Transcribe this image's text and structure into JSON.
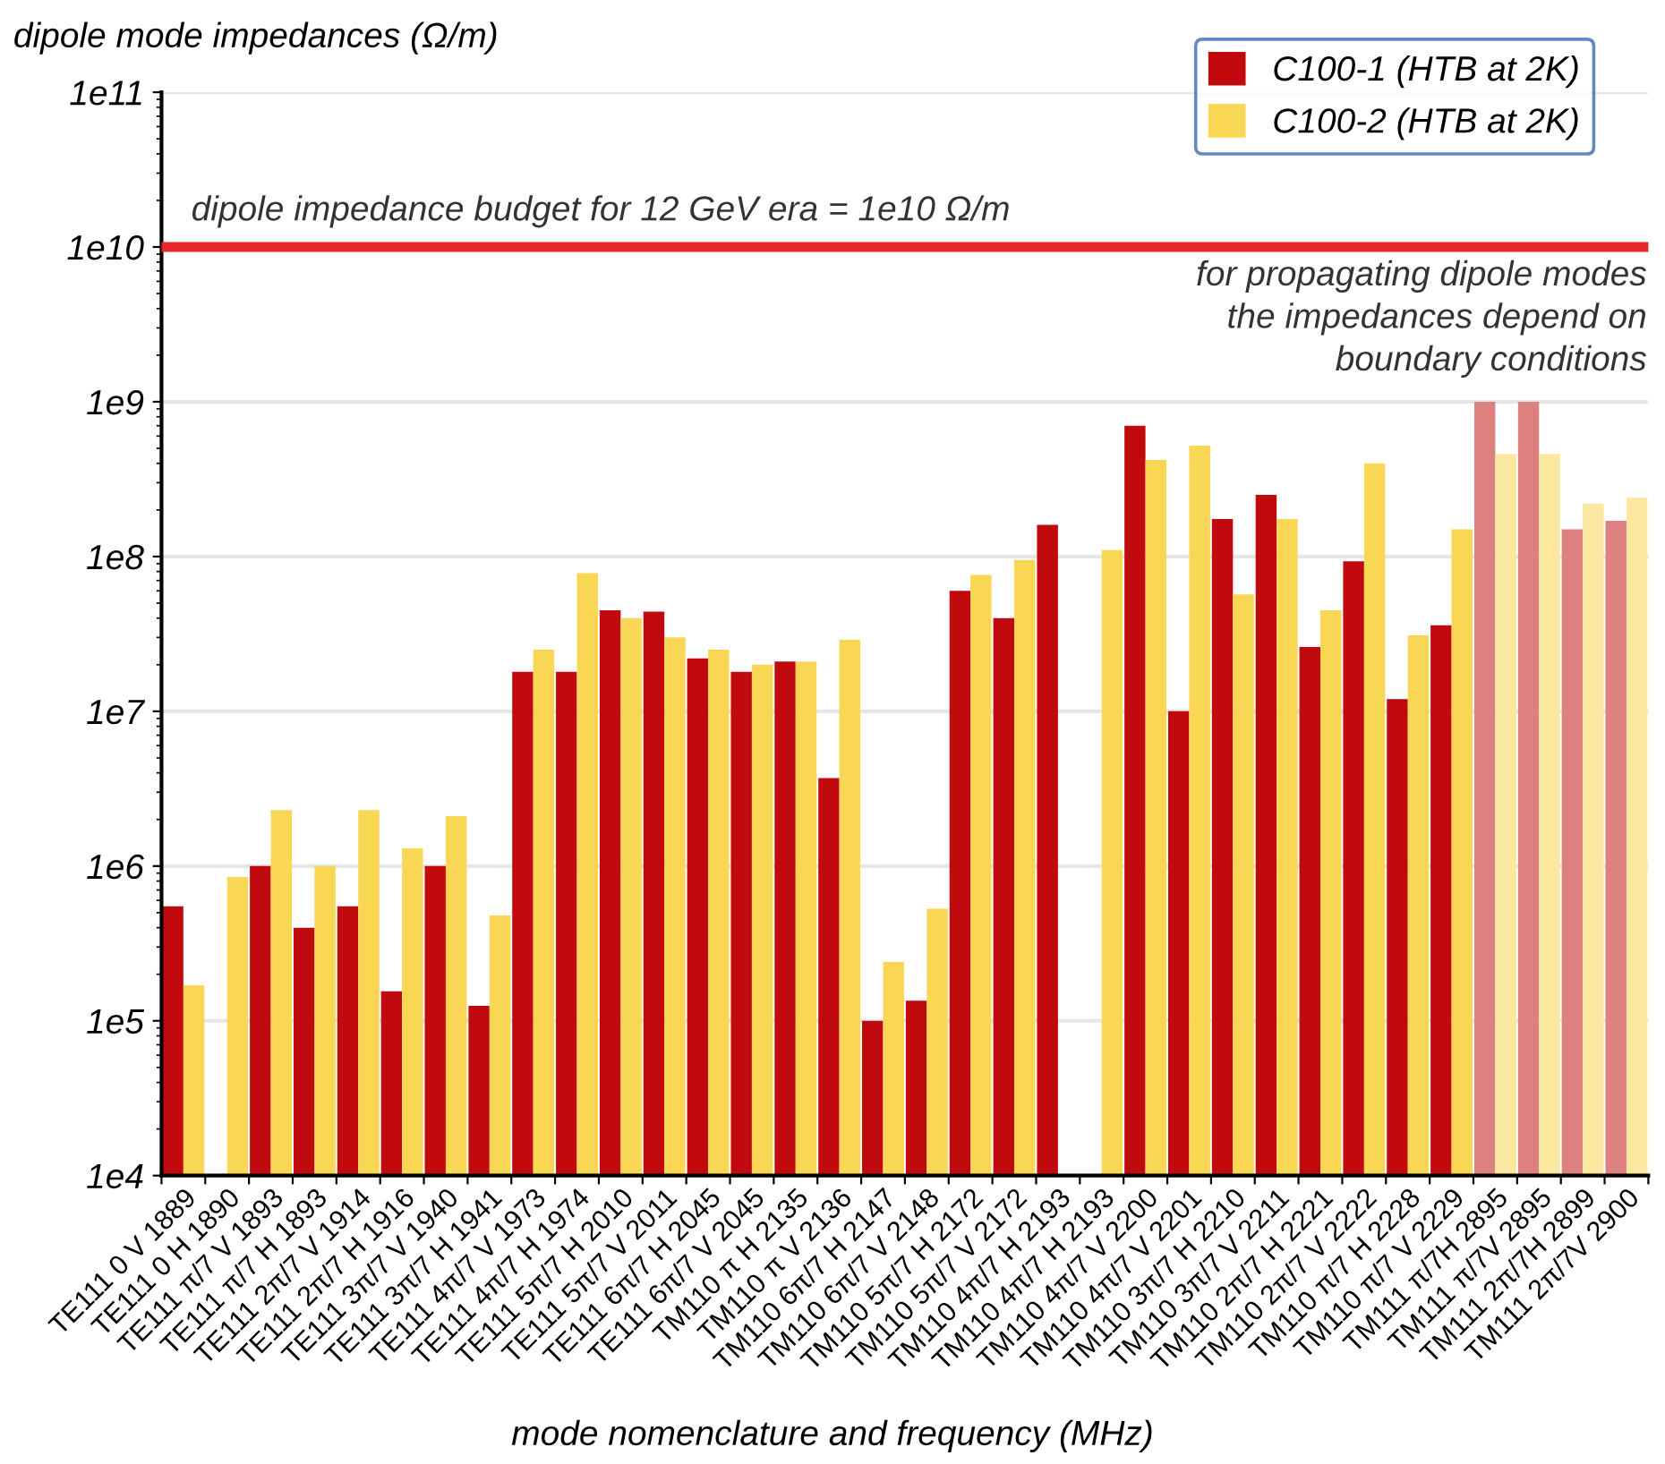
{
  "chart_data": {
    "type": "bar",
    "ylabel": "dipole mode impedances (Ω/m)",
    "xlabel": "mode nomenclature and frequency (MHz)",
    "categories": [
      "TE111 0 V 1889",
      "TE111 0 H 1890",
      "TE111 π/7 V 1893",
      "TE111 π/7 H 1893",
      "TE111 2π/7 V 1914",
      "TE111 2π/7 H 1916",
      "TE111 3π/7 V 1940",
      "TE111 3π/7 H 1941",
      "TE111 4π/7 V 1973",
      "TE111 4π/7 H 1974",
      "TE111 5π/7 H 2010",
      "TE111 5π/7 V 2011",
      "TE111 6π/7 H 2045",
      "TE111 6π/7 V 2045",
      "TM110 π H 2135",
      "TM110 π V 2136",
      "TM110 6π/7 H 2147",
      "TM110 6π/7 V 2148",
      "TM110 5π/7 H 2172",
      "TM110 5π/7 V 2172",
      "TM110 4π/7 H 2193",
      "TM110 4π/7 H 2193",
      "TM110 4π/7 V 2200",
      "TM110 4π/7 V 2201",
      "TM110 3π/7 H 2210",
      "TM110 3π/7 V 2211",
      "TM110 2π/7 H 2221",
      "TM110 2π/7 V 2222",
      "TM110 π/7 H 2228",
      "TM110 π/7 V 2229",
      "TM111 π/7H 2895",
      "TM111 π/7V 2895",
      "TM111 2π/7H 2899",
      "TM111 2π/7V 2900"
    ],
    "series": [
      {
        "name": "C100-1 (HTB at 2K)",
        "color": "#c00a0e",
        "colors": [
          "#c00a0e",
          "#c00a0e",
          "#c00a0e",
          "#c00a0e",
          "#c00a0e",
          "#c00a0e",
          "#c00a0e",
          "#c00a0e",
          "#c00a0e",
          "#c00a0e",
          "#c00a0e",
          "#c00a0e",
          "#c00a0e",
          "#c00a0e",
          "#c00a0e",
          "#c00a0e",
          "#c00a0e",
          "#c00a0e",
          "#c00a0e",
          "#c00a0e",
          "#c00a0e",
          "#c00a0e",
          "#c00a0e",
          "#c00a0e",
          "#c00a0e",
          "#c00a0e",
          "#c00a0e",
          "#c00a0e",
          "#c00a0e",
          "#c00a0e",
          "#dd8080",
          "#dd8080",
          "#dd8080",
          "#dd8080"
        ],
        "values": [
          550000,
          null,
          1000000,
          400000,
          550000,
          155000,
          1000000,
          125000,
          18000000,
          18000000,
          45000000,
          44000000,
          22000000,
          18000000,
          21000000,
          3700000,
          100000,
          135000,
          60000000,
          40000000,
          160000000,
          null,
          700000000,
          10000000,
          175000000,
          250000000,
          26000000,
          93000000,
          12000000,
          36000000,
          1000000000,
          1000000000,
          150000000,
          170000000
        ]
      },
      {
        "name": "C100-2 (HTB at 2K)",
        "color": "#f9d653",
        "colors": [
          "#f9d653",
          "#f9d653",
          "#f9d653",
          "#f9d653",
          "#f9d653",
          "#f9d653",
          "#f9d653",
          "#f9d653",
          "#f9d653",
          "#f9d653",
          "#f9d653",
          "#f9d653",
          "#f9d653",
          "#f9d653",
          "#f9d653",
          "#f9d653",
          "#f9d653",
          "#f9d653",
          "#f9d653",
          "#f9d653",
          "#f9d653",
          "#f9d653",
          "#f9d653",
          "#f9d653",
          "#f9d653",
          "#f9d653",
          "#f9d653",
          "#f9d653",
          "#f9d653",
          "#f9d653",
          "#fbe79f",
          "#fbe79f",
          "#fbe79f",
          "#fbe79f"
        ],
        "values": [
          170000,
          850000,
          2300000,
          1000000,
          2300000,
          1300000,
          2100000,
          480000,
          25000000,
          78000000,
          40000000,
          30000000,
          25000000,
          20000000,
          21000000,
          29000000,
          240000,
          530000,
          76000000,
          95000000,
          null,
          110000000,
          420000000,
          520000000,
          57000000,
          175000000,
          45000000,
          400000000,
          31000000,
          150000000,
          460000000,
          460000000,
          220000000,
          240000000
        ]
      }
    ],
    "log": "y",
    "ylim": [
      10000,
      100000000000
    ],
    "yticks": [
      {
        "value": 10000,
        "label": "1e4"
      },
      {
        "value": 100000,
        "label": "1e5"
      },
      {
        "value": 1000000,
        "label": "1e6"
      },
      {
        "value": 10000000,
        "label": "1e7"
      },
      {
        "value": 100000000,
        "label": "1e8"
      },
      {
        "value": 1000000000,
        "label": "1e9"
      },
      {
        "value": 10000000000,
        "label": "1e10"
      },
      {
        "value": 100000000000,
        "label": "1e11"
      }
    ],
    "grid": "y",
    "legend": "top right",
    "ref_lines": [
      {
        "axis": "y",
        "value": 10000000000,
        "color": "#e8272a"
      }
    ],
    "annotations": [
      "dipole impedance budget for 12 GeV era = 1e10 Ω/m",
      "for propagating dipole modes\nthe impedances depend on\nboundary conditions"
    ]
  }
}
